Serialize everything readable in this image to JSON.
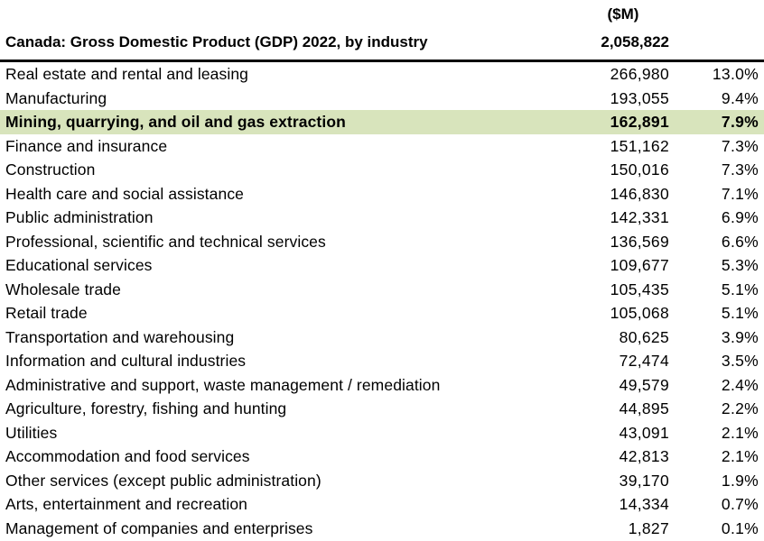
{
  "chart_data": {
    "type": "table",
    "title": "Canada: Gross Domestic Product (GDP) 2022, by industry",
    "unit_label": "($M)",
    "total": "2,058,822",
    "highlight_color": "#d8e4bc",
    "highlight_row": 2,
    "rows": [
      {
        "industry": "Real estate and rental and leasing",
        "value": "266,980",
        "share": "13.0%"
      },
      {
        "industry": "Manufacturing",
        "value": "193,055",
        "share": "9.4%"
      },
      {
        "industry": "Mining, quarrying, and oil and gas extraction",
        "value": "162,891",
        "share": "7.9%"
      },
      {
        "industry": "Finance and insurance",
        "value": "151,162",
        "share": "7.3%"
      },
      {
        "industry": "Construction",
        "value": "150,016",
        "share": "7.3%"
      },
      {
        "industry": "Health care and social assistance",
        "value": "146,830",
        "share": "7.1%"
      },
      {
        "industry": "Public administration",
        "value": "142,331",
        "share": "6.9%"
      },
      {
        "industry": "Professional, scientific and technical services",
        "value": "136,569",
        "share": "6.6%"
      },
      {
        "industry": "Educational services",
        "value": "109,677",
        "share": "5.3%"
      },
      {
        "industry": "Wholesale trade",
        "value": "105,435",
        "share": "5.1%"
      },
      {
        "industry": "Retail trade",
        "value": "105,068",
        "share": "5.1%"
      },
      {
        "industry": "Transportation and warehousing",
        "value": "80,625",
        "share": "3.9%"
      },
      {
        "industry": "Information and cultural industries",
        "value": "72,474",
        "share": "3.5%"
      },
      {
        "industry": "Administrative and support, waste management / remediation",
        "value": "49,579",
        "share": "2.4%"
      },
      {
        "industry": "Agriculture, forestry, fishing and hunting",
        "value": "44,895",
        "share": "2.2%"
      },
      {
        "industry": "Utilities",
        "value": "43,091",
        "share": "2.1%"
      },
      {
        "industry": "Accommodation and food services",
        "value": "42,813",
        "share": "2.1%"
      },
      {
        "industry": "Other services (except public administration)",
        "value": "39,170",
        "share": "1.9%"
      },
      {
        "industry": "Arts, entertainment and recreation",
        "value": "14,334",
        "share": "0.7%"
      },
      {
        "industry": "Management of companies and enterprises",
        "value": "1,827",
        "share": "0.1%"
      }
    ]
  }
}
